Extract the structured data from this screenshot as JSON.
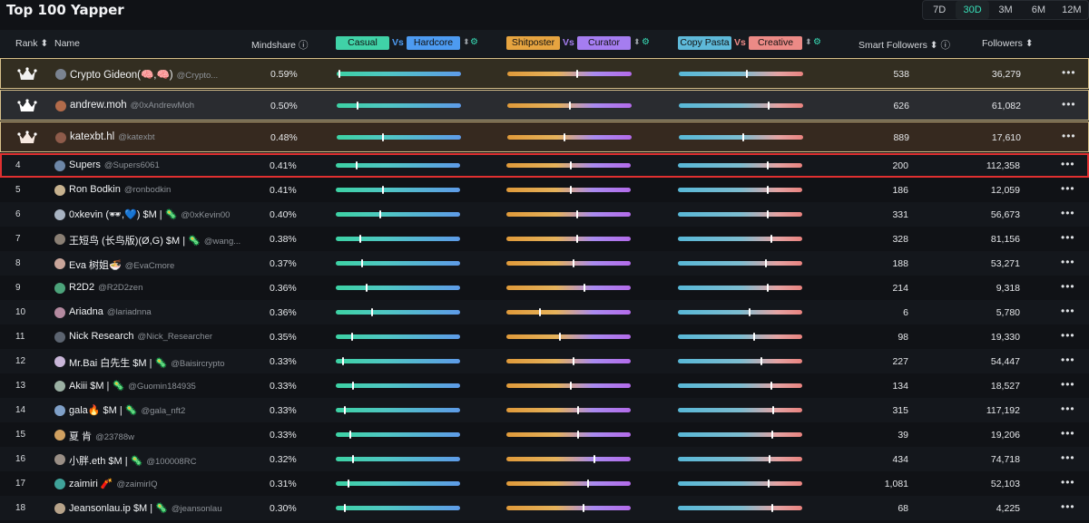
{
  "title": "Top 100 Yapper",
  "periods": [
    "7D",
    "30D",
    "3M",
    "6M",
    "12M"
  ],
  "active_period": "30D",
  "columns": {
    "rank": "Rank",
    "name": "Name",
    "mindshare": "Mindshare",
    "casual": "Casual",
    "vs": "Vs",
    "hardcore": "Hardcore",
    "shitposter": "Shitposter",
    "curator": "Curator",
    "copypasta": "Copy Pasta",
    "creative": "Creative",
    "smart_followers": "Smart Followers",
    "followers": "Followers"
  },
  "colors": {
    "casual": "#40d2a7",
    "hardcore": "#4d9bf1",
    "shitposter": "#e6a440",
    "curator": "#a57df0",
    "copypasta": "#5eb9d9",
    "creative": "#ec8a86",
    "highlight": "#e03030",
    "accent": "#38e0b9"
  },
  "rows": [
    {
      "rank": "1",
      "crown": true,
      "name": "Crypto Gideon(🧠,🧠)",
      "handle": "@Crypto...",
      "mindshare": "0.59%",
      "b1": 0.02,
      "b2": 0.56,
      "b3": 0.55,
      "smart": "538",
      "followers": "36,279"
    },
    {
      "rank": "2",
      "crown": true,
      "name": "andrew.moh",
      "handle": "@0xAndrewMoh",
      "mindshare": "0.50%",
      "b1": 0.17,
      "b2": 0.5,
      "b3": 0.72,
      "smart": "626",
      "followers": "61,082"
    },
    {
      "rank": "3",
      "crown": true,
      "name": "katexbt.hl",
      "handle": "@katexbt",
      "mindshare": "0.48%",
      "b1": 0.37,
      "b2": 0.46,
      "b3": 0.52,
      "smart": "889",
      "followers": "17,610"
    },
    {
      "rank": "4",
      "name": "Supers",
      "handle": "@Supers6061",
      "mindshare": "0.41%",
      "b1": 0.17,
      "b2": 0.52,
      "b3": 0.72,
      "smart": "200",
      "followers": "112,358"
    },
    {
      "rank": "5",
      "name": "Ron Bodkin",
      "handle": "@ronbodkin",
      "mindshare": "0.41%",
      "b1": 0.38,
      "b2": 0.52,
      "b3": 0.72,
      "smart": "186",
      "followers": "12,059"
    },
    {
      "rank": "6",
      "name": "0xkevin (🕶,💙) $M | 🦠",
      "handle": "@0xKevin00",
      "mindshare": "0.40%",
      "b1": 0.36,
      "b2": 0.57,
      "b3": 0.72,
      "smart": "331",
      "followers": "56,673"
    },
    {
      "rank": "7",
      "name": "王短鸟 (长鸟版)(Ø,G) $M | 🦠",
      "handle": "@wang...",
      "mindshare": "0.38%",
      "b1": 0.2,
      "b2": 0.57,
      "b3": 0.75,
      "smart": "328",
      "followers": "81,156"
    },
    {
      "rank": "8",
      "name": "Eva 树姐🍜",
      "handle": "@EvaCmore",
      "mindshare": "0.37%",
      "b1": 0.21,
      "b2": 0.54,
      "b3": 0.71,
      "smart": "188",
      "followers": "53,271"
    },
    {
      "rank": "9",
      "name": "R2D2",
      "handle": "@R2D2zen",
      "mindshare": "0.36%",
      "b1": 0.25,
      "b2": 0.63,
      "b3": 0.72,
      "smart": "214",
      "followers": "9,318"
    },
    {
      "rank": "10",
      "name": "Ariadna",
      "handle": "@lariadnna",
      "mindshare": "0.36%",
      "b1": 0.29,
      "b2": 0.27,
      "b3": 0.58,
      "smart": "6",
      "followers": "5,780"
    },
    {
      "rank": "11",
      "name": "Nick Research",
      "handle": "@Nick_Researcher",
      "mindshare": "0.35%",
      "b1": 0.13,
      "b2": 0.43,
      "b3": 0.61,
      "smart": "98",
      "followers": "19,330"
    },
    {
      "rank": "12",
      "name": "Mr.Bai 白先生 $M | 🦠",
      "handle": "@Baisircrypto",
      "mindshare": "0.33%",
      "b1": 0.06,
      "b2": 0.54,
      "b3": 0.67,
      "smart": "227",
      "followers": "54,447"
    },
    {
      "rank": "13",
      "name": "Akiii $M | 🦠",
      "handle": "@Guomin184935",
      "mindshare": "0.33%",
      "b1": 0.14,
      "b2": 0.52,
      "b3": 0.75,
      "smart": "134",
      "followers": "18,527"
    },
    {
      "rank": "14",
      "name": "gala🔥 $M | 🦠",
      "handle": "@gala_nft2",
      "mindshare": "0.33%",
      "b1": 0.07,
      "b2": 0.58,
      "b3": 0.77,
      "smart": "315",
      "followers": "117,192"
    },
    {
      "rank": "15",
      "name": "夏 肯",
      "handle": "@23788w",
      "mindshare": "0.33%",
      "b1": 0.12,
      "b2": 0.58,
      "b3": 0.76,
      "smart": "39",
      "followers": "19,206"
    },
    {
      "rank": "16",
      "name": "小胖.eth $M | 🦠",
      "handle": "@100008RC",
      "mindshare": "0.32%",
      "b1": 0.14,
      "b2": 0.71,
      "b3": 0.74,
      "smart": "434",
      "followers": "74,718"
    },
    {
      "rank": "17",
      "name": "zaimiri 🧨",
      "handle": "@zaimirIQ",
      "mindshare": "0.31%",
      "b1": 0.1,
      "b2": 0.66,
      "b3": 0.73,
      "smart": "1,081",
      "followers": "52,103"
    },
    {
      "rank": "18",
      "name": "Jeansonlau.ip $M | 🦠",
      "handle": "@jeansonlau",
      "mindshare": "0.30%",
      "b1": 0.07,
      "b2": 0.62,
      "b3": 0.76,
      "smart": "68",
      "followers": "4,225"
    }
  ]
}
